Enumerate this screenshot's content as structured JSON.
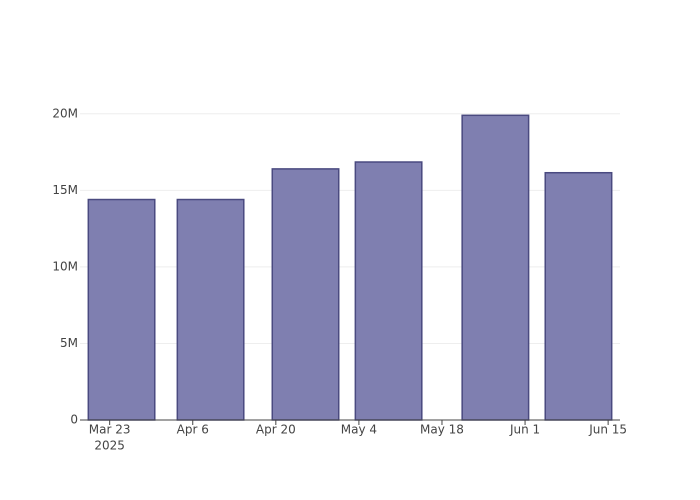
{
  "chart_data": {
    "type": "bar",
    "x": [
      "2025-03-25",
      "2025-04-09",
      "2025-04-25",
      "2025-05-09",
      "2025-05-27",
      "2025-06-10"
    ],
    "values": [
      14400000,
      14400000,
      16400000,
      16850000,
      19900000,
      16150000
    ],
    "color": "#7f7fb0",
    "edge_color": "#4a4a80",
    "bar_width_days": 11.2,
    "xlim": [
      "2025-03-18",
      "2025-06-17"
    ],
    "xticks": [
      {
        "value": "2025-03-23",
        "label": "Mar 23"
      },
      {
        "value": "2025-04-06",
        "label": "Apr 6"
      },
      {
        "value": "2025-04-20",
        "label": "Apr 20"
      },
      {
        "value": "2025-05-04",
        "label": "May 4"
      },
      {
        "value": "2025-05-18",
        "label": "May 18"
      },
      {
        "value": "2025-06-01",
        "label": "Jun 1"
      },
      {
        "value": "2025-06-15",
        "label": "Jun 15"
      }
    ],
    "x_year_label": "2025",
    "ylim": [
      0,
      20900000
    ],
    "yticks": [
      0,
      {
        "value": 5000000,
        "label": "5M"
      },
      {
        "value": 10000000,
        "label": "10M"
      },
      {
        "value": 15000000,
        "label": "15M"
      },
      {
        "value": 20000000,
        "label": "20M"
      }
    ],
    "grid": true
  }
}
